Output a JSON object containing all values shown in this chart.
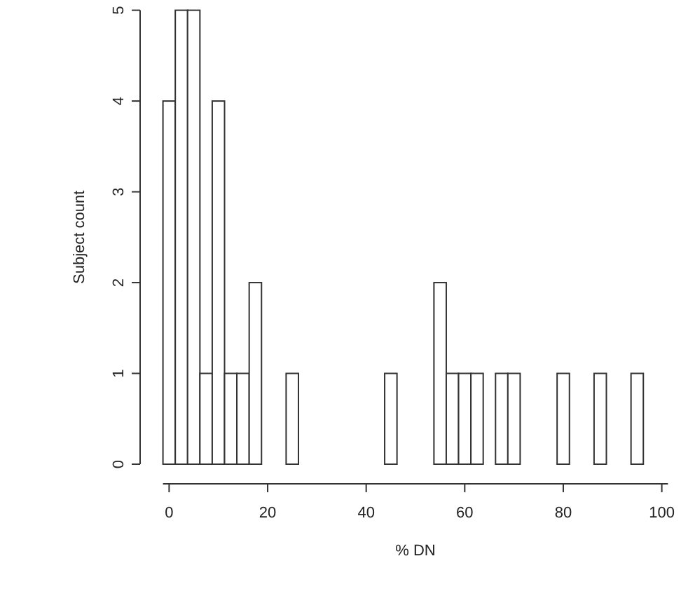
{
  "chart_data": {
    "type": "histogram",
    "xlabel": "% DN",
    "ylabel": "Subject count",
    "bins": [
      -1.25,
      1.25,
      3.75,
      6.25,
      8.75,
      11.25,
      13.75,
      16.25,
      18.75,
      21.25,
      23.75,
      26.25,
      28.75,
      31.25,
      33.75,
      36.25,
      38.75,
      41.25,
      43.75,
      46.25,
      48.75,
      51.25,
      53.75,
      56.25,
      58.75,
      61.25,
      63.75,
      66.25,
      68.75,
      71.25,
      73.75,
      76.25,
      78.75,
      81.25,
      83.75,
      86.25,
      88.75,
      91.25,
      93.75,
      96.25,
      98.75,
      101.25
    ],
    "values": [
      4,
      5,
      5,
      1,
      4,
      1,
      1,
      2,
      0,
      0,
      1,
      0,
      0,
      0,
      0,
      0,
      0,
      0,
      1,
      0,
      0,
      0,
      2,
      1,
      1,
      1,
      0,
      1,
      1,
      0,
      0,
      0,
      1,
      0,
      0,
      1,
      0,
      0,
      1,
      0,
      0
    ],
    "color": "#ffffff",
    "xlim": [
      -1.25,
      101.25
    ],
    "xticks": [
      0,
      20,
      40,
      60,
      80,
      100
    ],
    "ylim": [
      0,
      5
    ],
    "yticks": [
      0,
      1,
      2,
      3,
      4,
      5
    ],
    "grid": false
  }
}
